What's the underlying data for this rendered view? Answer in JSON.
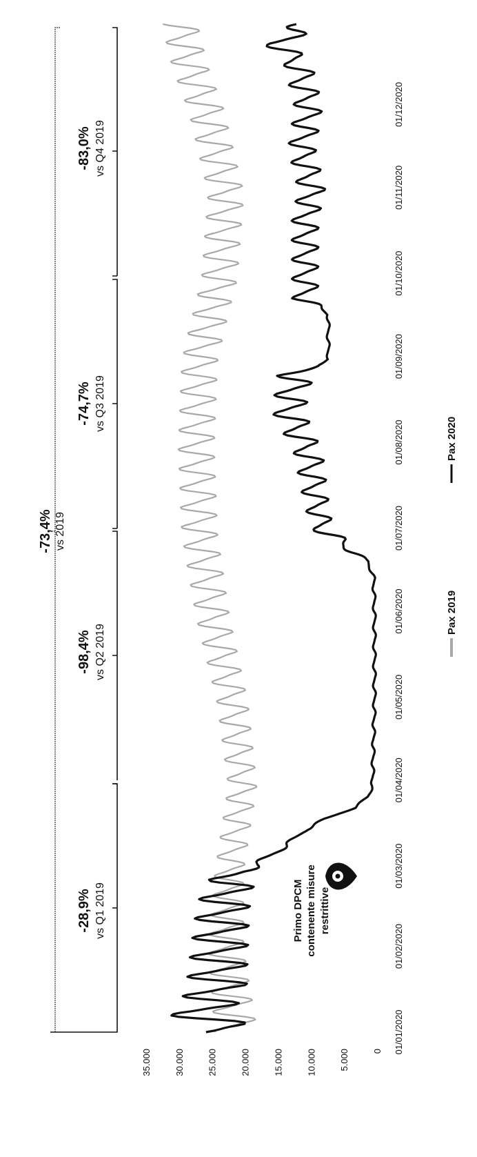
{
  "chart_data": {
    "type": "line",
    "orientation": "rotated-90-clockwise",
    "y_ticks": [
      "0",
      "5.000",
      "10.000",
      "15.000",
      "20.000",
      "25.000",
      "30.000",
      "35.000"
    ],
    "ylim": [
      0,
      35000
    ],
    "x_ticks": [
      "01/01/2020",
      "01/02/2020",
      "01/03/2020",
      "01/04/2020",
      "01/05/2020",
      "01/06/2020",
      "01/07/2020",
      "01/08/2020",
      "01/09/2020",
      "01/10/2020",
      "01/11/2020",
      "01/12/2020"
    ],
    "xlim": [
      "01/01/2020",
      "31/12/2020"
    ],
    "grid": false,
    "legend_position": "bottom",
    "series": [
      {
        "name": "Pax 2019",
        "color": "#a8a8a8",
        "style": "weekly oscillation",
        "base": [
          [
            1,
            21500
          ],
          [
            31,
            23000
          ],
          [
            59,
            22500
          ],
          [
            90,
            20500
          ],
          [
            120,
            22000
          ],
          [
            151,
            25000
          ],
          [
            181,
            27000
          ],
          [
            212,
            27500
          ],
          [
            243,
            27000
          ],
          [
            254,
            26000
          ],
          [
            273,
            24000
          ],
          [
            304,
            23000
          ],
          [
            334,
            26000
          ],
          [
            350,
            28500
          ],
          [
            365,
            30000
          ]
        ],
        "amplitude": [
          [
            1,
            3000
          ],
          [
            59,
            2000
          ],
          [
            90,
            2000
          ],
          [
            181,
            2500
          ],
          [
            300,
            2500
          ],
          [
            365,
            2500
          ]
        ]
      },
      {
        "name": "Pax 2020",
        "color": "#111111",
        "style": "weekly oscillation",
        "base": [
          [
            1,
            23000
          ],
          [
            8,
            27000
          ],
          [
            15,
            24500
          ],
          [
            45,
            23500
          ],
          [
            55,
            22500
          ],
          [
            59,
            21000
          ],
          [
            62,
            18000
          ],
          [
            66,
            15500
          ],
          [
            70,
            13000
          ],
          [
            74,
            11000
          ],
          [
            78,
            8000
          ],
          [
            82,
            3500
          ],
          [
            86,
            1500
          ],
          [
            90,
            800
          ],
          [
            120,
            500
          ],
          [
            150,
            500
          ],
          [
            165,
            600
          ],
          [
            171,
            1500
          ],
          [
            175,
            4000
          ],
          [
            183,
            8500
          ],
          [
            195,
            9500
          ],
          [
            210,
            10500
          ],
          [
            225,
            13500
          ],
          [
            238,
            12500
          ],
          [
            242,
            9000
          ],
          [
            244,
            7500
          ],
          [
            260,
            7500
          ],
          [
            262,
            8500
          ],
          [
            266,
            11000
          ],
          [
            273,
            11000
          ],
          [
            295,
            11000
          ],
          [
            305,
            10000
          ],
          [
            320,
            11500
          ],
          [
            335,
            10500
          ],
          [
            350,
            12000
          ],
          [
            358,
            15000
          ],
          [
            365,
            11000
          ]
        ],
        "amplitude": [
          [
            1,
            4500
          ],
          [
            55,
            3500
          ],
          [
            62,
            800
          ],
          [
            80,
            200
          ],
          [
            171,
            200
          ],
          [
            180,
            1500
          ],
          [
            238,
            2500
          ],
          [
            242,
            200
          ],
          [
            262,
            200
          ],
          [
            266,
            1800
          ],
          [
            365,
            2000
          ]
        ]
      }
    ],
    "annotations": [
      {
        "pct": "-73,4%",
        "vs": "vs 2019"
      },
      {
        "pct": "-28,9%",
        "vs": "vs Q1 2019"
      },
      {
        "pct": "-98,4%",
        "vs": "vs Q2 2019"
      },
      {
        "pct": "-74,7%",
        "vs": "vs Q3 2019"
      },
      {
        "pct": "-83,0%",
        "vs": "vs Q4 2019"
      }
    ],
    "event_note": [
      "Primo DPCM",
      "contenente misure",
      "restrittive"
    ]
  },
  "icons": {
    "event_marker": "map-pin-icon"
  }
}
